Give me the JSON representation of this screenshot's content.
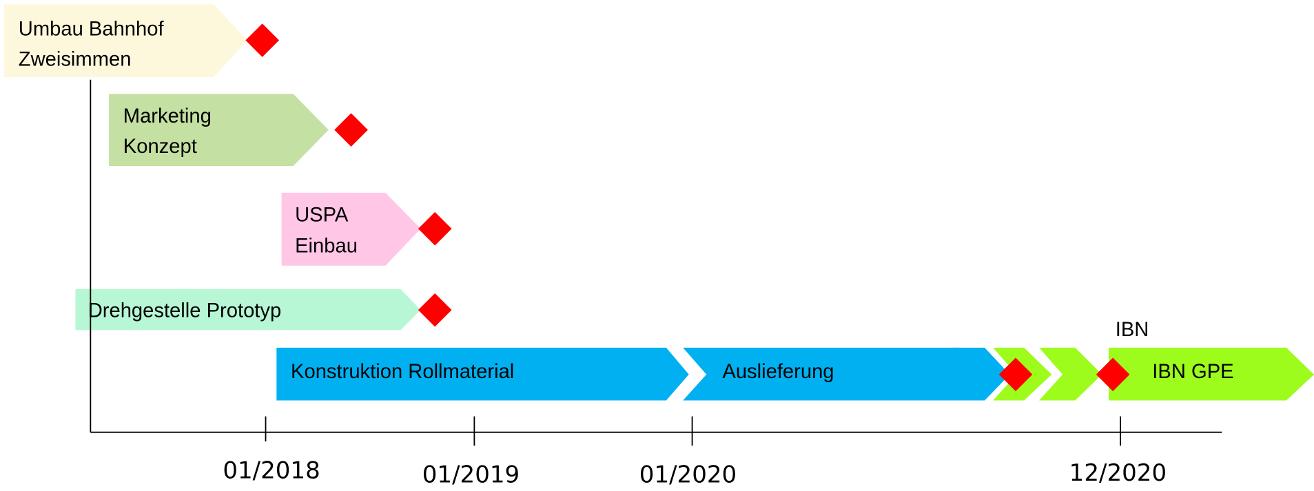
{
  "tasks": [
    {
      "lines": [
        "Umbau Bahnhof",
        "Zweisimmen"
      ]
    },
    {
      "lines": [
        "Marketing",
        "Konzept"
      ]
    },
    {
      "lines": [
        "USPA",
        "Einbau"
      ]
    },
    {
      "lines": [
        "Drehgestelle Prototyp"
      ]
    }
  ],
  "phases": [
    "Konstruktion Rollmaterial",
    "Auslieferung",
    "IBN GPE"
  ],
  "annotation": "IBN",
  "axis_ticks": [
    "01/2018",
    "01/2019",
    "01/2020",
    "12/2020"
  ]
}
